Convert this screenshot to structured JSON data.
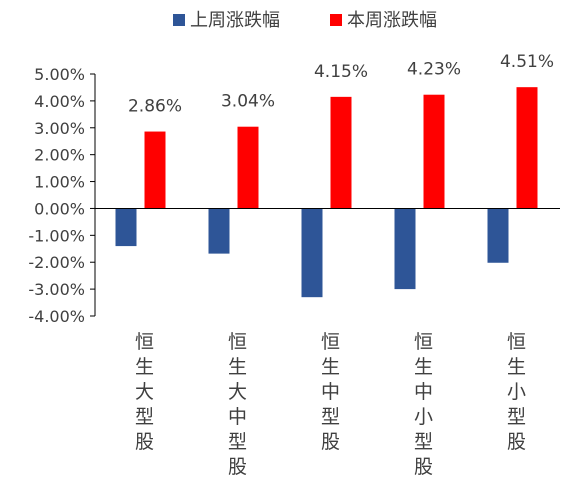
{
  "chart_data": {
    "type": "bar",
    "title": "",
    "xlabel": "",
    "ylabel": "",
    "categories": [
      "恒生大型股",
      "恒生大中型股",
      "恒生中型股",
      "恒生中小型股",
      "恒生小型股"
    ],
    "series": [
      {
        "name": "上周涨跌幅",
        "color": "#2E5597",
        "values": [
          -1.4,
          -1.68,
          -3.3,
          -3.0,
          -2.02
        ]
      },
      {
        "name": "本周涨跌幅",
        "color": "#FF0000",
        "values": [
          2.86,
          3.04,
          4.15,
          4.23,
          4.51
        ]
      }
    ],
    "data_labels": [
      "2.86%",
      "3.04%",
      "4.15%",
      "4.23%",
      "4.51%"
    ],
    "ylim": [
      -4,
      5
    ],
    "yticks": [
      "5.00%",
      "4.00%",
      "3.00%",
      "2.00%",
      "1.00%",
      "0.00%",
      "-1.00%",
      "-2.00%",
      "-3.00%",
      "-4.00%"
    ],
    "legend_position": "top",
    "grid": false
  }
}
